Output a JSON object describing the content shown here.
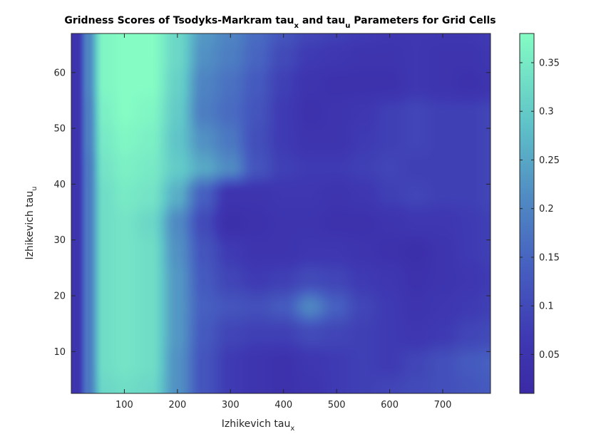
{
  "chart_data": {
    "type": "heatmap",
    "title": "Gridness Scores of Tsodyks-Markram tau",
    "title_parts": {
      "p1": "Gridness Scores of Tsodyks-Markram tau",
      "sub1": "x",
      "p2": " and tau",
      "sub2": "u",
      "p3": " Parameters for Grid Cells"
    },
    "xlabel": {
      "main": "Izhikevich tau",
      "sub": "x"
    },
    "ylabel": {
      "main": "Izhikevich tau",
      "sub": "u"
    },
    "xlim": [
      0,
      790
    ],
    "ylim": [
      2.5,
      67
    ],
    "xticks": [
      100,
      200,
      300,
      400,
      500,
      600,
      700
    ],
    "yticks": [
      10,
      20,
      30,
      40,
      50,
      60
    ],
    "colorbar": {
      "limits": [
        0.01,
        0.38
      ],
      "ticks": [
        0.05,
        0.1,
        0.15,
        0.2,
        0.25,
        0.3,
        0.35
      ],
      "tick_labels": [
        "0.05",
        "0.1",
        "0.15",
        "0.2",
        "0.25",
        "0.3",
        "0.35"
      ],
      "colormap_low": "#3a2ea6",
      "colormap_mid": "#4f88c0",
      "colormap_high": "#84fcc4"
    },
    "grid": false,
    "x": [
      10,
      30,
      60,
      100,
      150,
      200,
      250,
      300,
      350,
      400,
      450,
      500,
      550,
      600,
      650,
      700,
      750,
      790
    ],
    "y": [
      3,
      8,
      13,
      18,
      23,
      28,
      33,
      38,
      43,
      48,
      53,
      58,
      63,
      67
    ],
    "z": [
      [
        0.05,
        0.18,
        0.32,
        0.33,
        0.32,
        0.22,
        0.12,
        0.07,
        0.05,
        0.04,
        0.05,
        0.07,
        0.08,
        0.09,
        0.1,
        0.11,
        0.12,
        0.13
      ],
      [
        0.05,
        0.18,
        0.33,
        0.34,
        0.33,
        0.22,
        0.12,
        0.07,
        0.05,
        0.04,
        0.06,
        0.07,
        0.08,
        0.07,
        0.09,
        0.11,
        0.13,
        0.14
      ],
      [
        0.05,
        0.18,
        0.33,
        0.34,
        0.33,
        0.23,
        0.13,
        0.09,
        0.08,
        0.08,
        0.1,
        0.09,
        0.08,
        0.07,
        0.06,
        0.07,
        0.09,
        0.1
      ],
      [
        0.05,
        0.18,
        0.33,
        0.34,
        0.33,
        0.23,
        0.14,
        0.12,
        0.11,
        0.13,
        0.2,
        0.14,
        0.09,
        0.07,
        0.05,
        0.06,
        0.07,
        0.08
      ],
      [
        0.05,
        0.18,
        0.33,
        0.34,
        0.33,
        0.23,
        0.13,
        0.09,
        0.07,
        0.08,
        0.1,
        0.09,
        0.07,
        0.06,
        0.04,
        0.05,
        0.06,
        0.07
      ],
      [
        0.05,
        0.18,
        0.33,
        0.34,
        0.33,
        0.22,
        0.12,
        0.07,
        0.05,
        0.05,
        0.06,
        0.06,
        0.05,
        0.04,
        0.03,
        0.05,
        0.07,
        0.08
      ],
      [
        0.05,
        0.18,
        0.33,
        0.34,
        0.32,
        0.21,
        0.1,
        0.03,
        0.04,
        0.05,
        0.05,
        0.04,
        0.04,
        0.05,
        0.06,
        0.06,
        0.07,
        0.08
      ],
      [
        0.05,
        0.18,
        0.33,
        0.35,
        0.34,
        0.26,
        0.14,
        0.05,
        0.05,
        0.06,
        0.06,
        0.05,
        0.06,
        0.08,
        0.09,
        0.08,
        0.08,
        0.09
      ],
      [
        0.05,
        0.18,
        0.34,
        0.36,
        0.35,
        0.3,
        0.25,
        0.21,
        0.12,
        0.08,
        0.07,
        0.07,
        0.08,
        0.09,
        0.08,
        0.08,
        0.08,
        0.09
      ],
      [
        0.05,
        0.19,
        0.35,
        0.37,
        0.36,
        0.29,
        0.22,
        0.18,
        0.11,
        0.07,
        0.05,
        0.05,
        0.07,
        0.08,
        0.09,
        0.08,
        0.08,
        0.09
      ],
      [
        0.05,
        0.19,
        0.36,
        0.38,
        0.37,
        0.3,
        0.19,
        0.16,
        0.12,
        0.07,
        0.04,
        0.05,
        0.06,
        0.08,
        0.09,
        0.08,
        0.08,
        0.09
      ],
      [
        0.05,
        0.2,
        0.37,
        0.38,
        0.38,
        0.31,
        0.2,
        0.17,
        0.13,
        0.08,
        0.05,
        0.04,
        0.04,
        0.04,
        0.06,
        0.05,
        0.04,
        0.05
      ],
      [
        0.05,
        0.2,
        0.37,
        0.38,
        0.38,
        0.32,
        0.22,
        0.19,
        0.15,
        0.1,
        0.07,
        0.06,
        0.05,
        0.05,
        0.06,
        0.05,
        0.05,
        0.06
      ],
      [
        0.05,
        0.2,
        0.37,
        0.38,
        0.38,
        0.32,
        0.23,
        0.2,
        0.16,
        0.12,
        0.09,
        0.08,
        0.07,
        0.06,
        0.06,
        0.06,
        0.06,
        0.07
      ]
    ]
  }
}
